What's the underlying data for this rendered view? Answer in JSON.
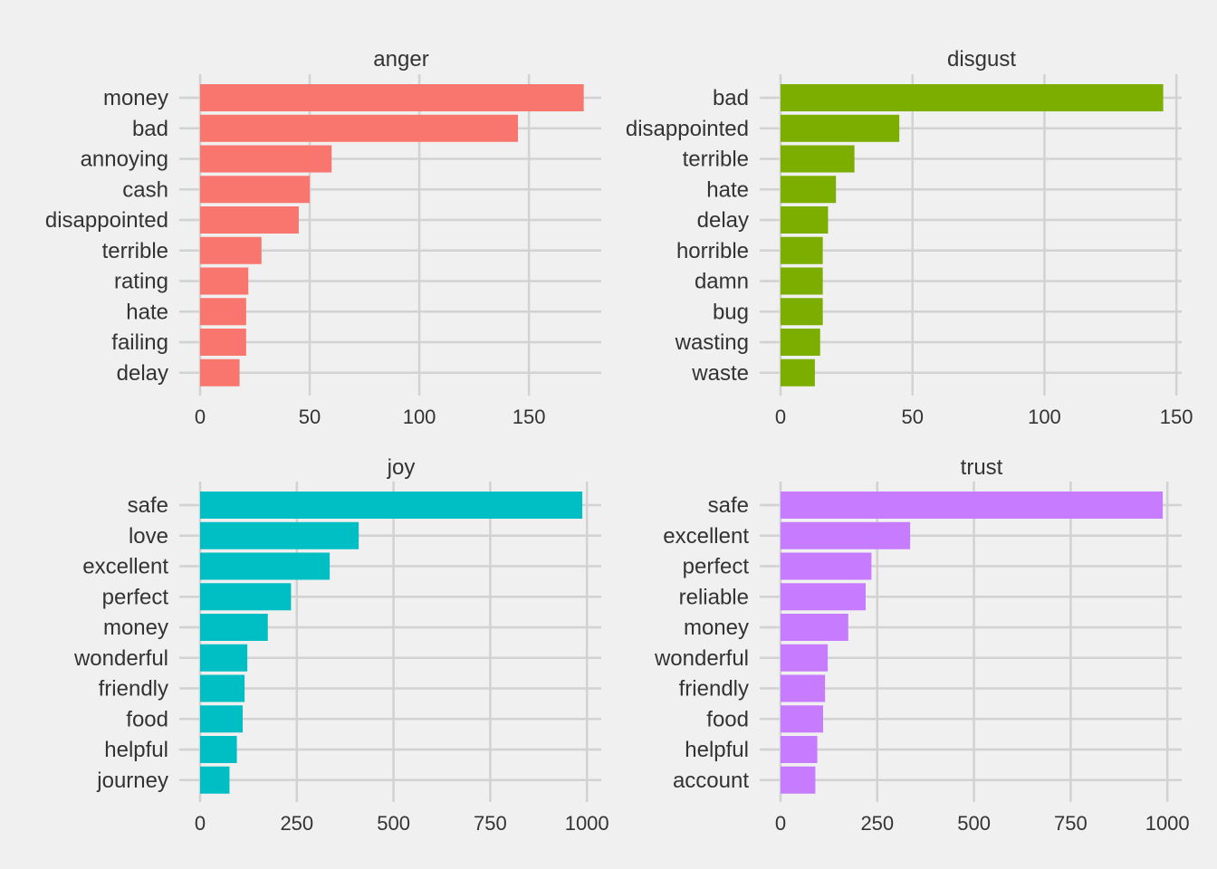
{
  "chart_data": [
    {
      "type": "bar",
      "orientation": "horizontal",
      "title": "anger",
      "color": "#F8766D",
      "categories": [
        "money",
        "bad",
        "annoying",
        "cash",
        "disappointed",
        "terrible",
        "rating",
        "hate",
        "failing",
        "delay"
      ],
      "values": [
        175,
        145,
        60,
        50,
        45,
        28,
        22,
        21,
        21,
        18
      ],
      "xticks": [
        0,
        50,
        100,
        150
      ],
      "xlim": [
        0,
        183
      ]
    },
    {
      "type": "bar",
      "orientation": "horizontal",
      "title": "disgust",
      "color": "#7CAE00",
      "categories": [
        "bad",
        "disappointed",
        "terrible",
        "hate",
        "delay",
        "horrible",
        "damn",
        "bug",
        "wasting",
        "waste"
      ],
      "values": [
        145,
        45,
        28,
        21,
        18,
        16,
        16,
        16,
        15,
        13
      ],
      "xticks": [
        0,
        50,
        100,
        150
      ],
      "xlim": [
        0,
        152
      ]
    },
    {
      "type": "bar",
      "orientation": "horizontal",
      "title": "joy",
      "color": "#00BFC4",
      "categories": [
        "safe",
        "love",
        "excellent",
        "perfect",
        "money",
        "wonderful",
        "friendly",
        "food",
        "helpful",
        "journey"
      ],
      "values": [
        988,
        410,
        335,
        235,
        175,
        122,
        115,
        110,
        95,
        76
      ],
      "xticks": [
        0,
        250,
        500,
        750,
        1000
      ],
      "xlim": [
        0,
        1037
      ]
    },
    {
      "type": "bar",
      "orientation": "horizontal",
      "title": "trust",
      "color": "#C77CFF",
      "categories": [
        "safe",
        "excellent",
        "perfect",
        "reliable",
        "money",
        "wonderful",
        "friendly",
        "food",
        "helpful",
        "account"
      ],
      "values": [
        988,
        335,
        235,
        220,
        175,
        122,
        115,
        110,
        95,
        90
      ],
      "xticks": [
        0,
        250,
        500,
        750,
        1000
      ],
      "xlim": [
        0,
        1037
      ]
    }
  ]
}
